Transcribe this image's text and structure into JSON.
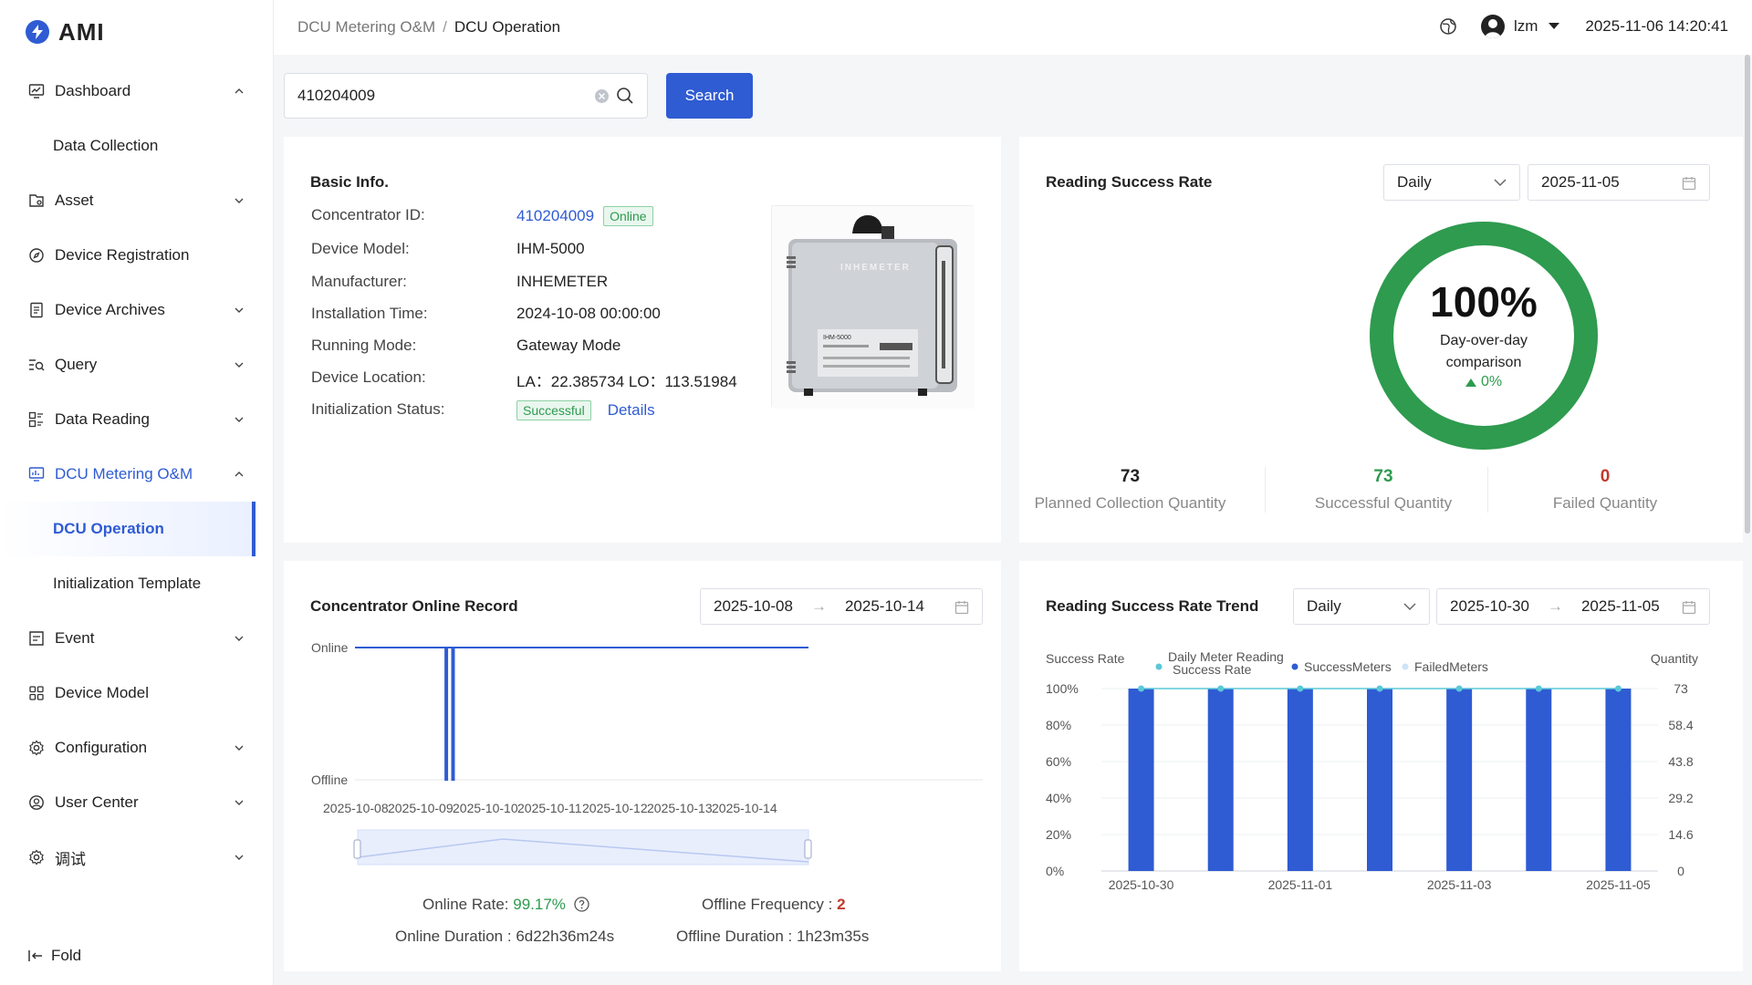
{
  "app": {
    "name": "AMI"
  },
  "sidebar": {
    "items": [
      {
        "label": "Dashboard"
      },
      {
        "label": "Data Collection"
      },
      {
        "label": "Asset"
      },
      {
        "label": "Device Registration"
      },
      {
        "label": "Device Archives"
      },
      {
        "label": "Query"
      },
      {
        "label": "Data Reading"
      },
      {
        "label": "DCU Metering O&M"
      },
      {
        "label": "DCU Operation"
      },
      {
        "label": "Initialization Template"
      },
      {
        "label": "Event"
      },
      {
        "label": "Device Model"
      },
      {
        "label": "Configuration"
      },
      {
        "label": "User Center"
      },
      {
        "label": "调试"
      }
    ],
    "fold_label": "Fold"
  },
  "header": {
    "breadcrumb": [
      "DCU Metering O&M",
      "DCU Operation"
    ],
    "separator": "/",
    "user": "lzm",
    "datetime": "2025-11-06 14:20:41"
  },
  "search": {
    "value": "410204009",
    "button": "Search"
  },
  "basic_info": {
    "title": "Basic Info.",
    "fields": [
      {
        "label": "Concentrator ID:",
        "value": "410204009",
        "badge": "Online"
      },
      {
        "label": "Device Model:",
        "value": "IHM-5000"
      },
      {
        "label": "Manufacturer:",
        "value": "INHEMETER"
      },
      {
        "label": "Installation Time:",
        "value": "2024-10-08 00:00:00"
      },
      {
        "label": "Running Mode:",
        "value": "Gateway Mode"
      },
      {
        "label": "Device Location:",
        "value": "LA：22.385734 LO：113.51984"
      },
      {
        "label": "Initialization Status:",
        "value": "Successful",
        "link": "Details"
      }
    ],
    "device_brand": "INHEMETER",
    "device_label": "IHM-5000"
  },
  "reading_success": {
    "title": "Reading Success Rate",
    "period": "Daily",
    "date": "2025-11-05",
    "rate": "100%",
    "rate_value": 1.0,
    "dod_label": "Day-over-day comparison",
    "dod_value": "0%",
    "stats": [
      {
        "value": "73",
        "label": "Planned Collection Quantity",
        "color": "#222222"
      },
      {
        "value": "73",
        "label": "Successful Quantity",
        "color": "#2e9b4f"
      },
      {
        "value": "0",
        "label": "Failed Quantity",
        "color": "#c0392b"
      }
    ]
  },
  "online_record": {
    "title": "Concentrator Online Record",
    "start_date": "2025-10-08",
    "end_date": "2025-10-14",
    "online_rate_label": "Online Rate:",
    "online_rate": "99.17%",
    "offline_freq_label": "Offline Frequency :",
    "offline_freq": "2",
    "online_duration_label": "Online Duration :",
    "online_duration": "6d22h36m24s",
    "offline_duration_label": "Offline Duration :",
    "offline_duration": "1h23m35s"
  },
  "trend": {
    "title": "Reading Success Rate Trend",
    "period": "Daily",
    "start_date": "2025-10-30",
    "end_date": "2025-11-05"
  },
  "colors": {
    "accent": "#2f5bd3",
    "success": "#2e9b4f",
    "danger": "#c0392b",
    "ring": "#2e9b4f"
  },
  "chart_data": [
    {
      "type": "line",
      "title": "Concentrator Online Record",
      "categories": [
        "2025-10-08",
        "2025-10-09",
        "2025-10-10",
        "2025-10-11",
        "2025-10-12",
        "2025-10-13",
        "2025-10-14"
      ],
      "y_categories": [
        "Offline",
        "Online"
      ],
      "series": [
        {
          "values": [
            [
              "2025-10-08 00:00",
              "Online"
            ],
            [
              "2025-10-09 09:30",
              "Online"
            ],
            [
              "2025-10-09 09:30",
              "Offline"
            ],
            [
              "2025-10-09 10:10",
              "Offline"
            ],
            [
              "2025-10-09 10:10",
              "Online"
            ],
            [
              "2025-10-09 12:00",
              "Online"
            ],
            [
              "2025-10-09 12:00",
              "Offline"
            ],
            [
              "2025-10-09 12:40",
              "Offline"
            ],
            [
              "2025-10-09 12:40",
              "Online"
            ],
            [
              "2025-10-14 24:00",
              "Online"
            ]
          ]
        }
      ],
      "grid": false
    },
    {
      "type": "bar",
      "title": "Reading Success Rate Trend",
      "categories": [
        "2025-10-30",
        "2025-10-31",
        "2025-11-01",
        "2025-11-02",
        "2025-11-03",
        "2025-11-04",
        "2025-11-05"
      ],
      "x_tick_labels": [
        "2025-10-30",
        "2025-11-01",
        "2025-11-03",
        "2025-11-05"
      ],
      "ylabel": "Success Rate",
      "y2label": "Quantity",
      "y_ticks": [
        "0%",
        "20%",
        "40%",
        "60%",
        "80%",
        "100%"
      ],
      "y2_ticks": [
        "0",
        "14.6",
        "29.2",
        "43.8",
        "58.4",
        "73"
      ],
      "ylim": [
        0,
        100
      ],
      "y2lim": [
        0,
        73
      ],
      "legend": [
        "Daily Meter Reading Success Rate",
        "SuccessMeters",
        "FailedMeters"
      ],
      "legend_position": "top",
      "series": [
        {
          "name": "Daily Meter Reading Success Rate",
          "type": "line",
          "axis": "left",
          "color": "#5ac8d8",
          "values": [
            100,
            100,
            100,
            100,
            100,
            100,
            100
          ]
        },
        {
          "name": "SuccessMeters",
          "type": "bar",
          "axis": "right",
          "color": "#2f5bd3",
          "values": [
            73,
            73,
            73,
            73,
            73,
            73,
            73
          ]
        },
        {
          "name": "FailedMeters",
          "type": "bar",
          "axis": "right",
          "color": "#cfe3f7",
          "values": [
            0,
            0,
            0,
            0,
            0,
            0,
            0
          ]
        }
      ]
    }
  ]
}
